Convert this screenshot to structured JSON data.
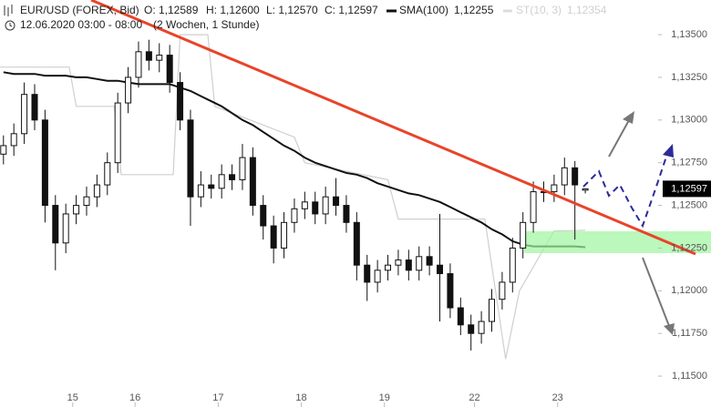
{
  "chart_data": {
    "type": "candlestick",
    "title": "EUR/USD (FOREX, Bid)",
    "ohlc_labels": [
      "O: 1,12589",
      "H: 1,12600",
      "L: 1,12570",
      "C: 1,12597"
    ],
    "subtitle": "12.06.2020 03:00 - 08:00",
    "period": "(2 Wochen, 1 Stunde)",
    "x": [
      1,
      4,
      7,
      10,
      13,
      16,
      19,
      22,
      25,
      28,
      31,
      34,
      37,
      40,
      43,
      46,
      49,
      52,
      55,
      58,
      61,
      64,
      67,
      70,
      73,
      76,
      79,
      82,
      85,
      88,
      91,
      94,
      97,
      100,
      103,
      106,
      109,
      112,
      115,
      118,
      121,
      124,
      127,
      130,
      133,
      136,
      139,
      142,
      145,
      148,
      151,
      154,
      157,
      160,
      163,
      166,
      169
    ],
    "open": [
      1.128,
      1.1285,
      1.1292,
      1.1315,
      1.13,
      1.125,
      1.1228,
      1.1245,
      1.125,
      1.1255,
      1.1262,
      1.1275,
      1.131,
      1.1325,
      1.134,
      1.1335,
      1.1338,
      1.1322,
      1.13,
      1.1255,
      1.1262,
      1.126,
      1.1268,
      1.1265,
      1.1278,
      1.125,
      1.1238,
      1.1225,
      1.124,
      1.1248,
      1.1252,
      1.1245,
      1.1255,
      1.125,
      1.124,
      1.1215,
      1.1205,
      1.1212,
      1.1215,
      1.1218,
      1.1212,
      1.122,
      1.1215,
      1.121,
      1.119,
      1.118,
      1.1175,
      1.1182,
      1.1195,
      1.1205,
      1.1225,
      1.124,
      1.1258,
      1.1258,
      1.1262,
      1.1272,
      1.12589
    ],
    "high": [
      1.1291,
      1.1298,
      1.1322,
      1.1321,
      1.1306,
      1.1256,
      1.1251,
      1.1256,
      1.1261,
      1.1268,
      1.1281,
      1.1316,
      1.1331,
      1.1346,
      1.1347,
      1.1345,
      1.1344,
      1.1328,
      1.1306,
      1.127,
      1.1268,
      1.1274,
      1.1274,
      1.1286,
      1.1284,
      1.1256,
      1.1244,
      1.1246,
      1.1254,
      1.1258,
      1.1258,
      1.1261,
      1.1266,
      1.1256,
      1.1246,
      1.1221,
      1.1218,
      1.1221,
      1.1224,
      1.1224,
      1.1226,
      1.1226,
      1.1245,
      1.1216,
      1.1196,
      1.1186,
      1.1188,
      1.1201,
      1.1211,
      1.1231,
      1.1246,
      1.1264,
      1.1264,
      1.1268,
      1.1278,
      1.1276,
      1.126
    ],
    "low": [
      1.1274,
      1.1279,
      1.1286,
      1.1294,
      1.124,
      1.1212,
      1.1222,
      1.1239,
      1.1244,
      1.1249,
      1.1256,
      1.1269,
      1.1304,
      1.1319,
      1.1329,
      1.1328,
      1.1316,
      1.1294,
      1.1238,
      1.1249,
      1.1254,
      1.1254,
      1.1259,
      1.1259,
      1.1244,
      1.123,
      1.1216,
      1.1219,
      1.1234,
      1.1242,
      1.1239,
      1.1239,
      1.1244,
      1.1234,
      1.1206,
      1.1194,
      1.1199,
      1.1206,
      1.1209,
      1.1206,
      1.1206,
      1.1209,
      1.1182,
      1.1184,
      1.1174,
      1.1165,
      1.1169,
      1.1176,
      1.1189,
      1.1199,
      1.1219,
      1.1234,
      1.1252,
      1.1252,
      1.1256,
      1.123,
      1.1257
    ],
    "close": [
      1.1285,
      1.1292,
      1.1315,
      1.13,
      1.125,
      1.1228,
      1.1245,
      1.125,
      1.1255,
      1.1262,
      1.1275,
      1.131,
      1.1325,
      1.134,
      1.1335,
      1.1338,
      1.1322,
      1.13,
      1.1255,
      1.1262,
      1.126,
      1.1268,
      1.1265,
      1.1278,
      1.125,
      1.1238,
      1.1225,
      1.124,
      1.1248,
      1.1252,
      1.1245,
      1.1255,
      1.125,
      1.124,
      1.1215,
      1.1205,
      1.1212,
      1.1215,
      1.1218,
      1.1212,
      1.122,
      1.1215,
      1.121,
      1.119,
      1.118,
      1.1175,
      1.1182,
      1.1195,
      1.1205,
      1.1225,
      1.124,
      1.1258,
      1.1258,
      1.1262,
      1.1272,
      1.1262,
      1.12597
    ],
    "overlays": [
      {
        "name": "ST(10, 3)",
        "color": "#cfcfcf",
        "value_label": "1,12354",
        "x": [
          0,
          20,
          22,
          33,
          35,
          50,
          52,
          60,
          62,
          85,
          88,
          112,
          115,
          140,
          146,
          150,
          160,
          169
        ],
        "values": [
          1.1331,
          1.1331,
          1.1308,
          1.1308,
          1.1268,
          1.1268,
          1.135,
          1.135,
          1.1308,
          1.129,
          1.1275,
          1.1265,
          1.1242,
          1.1242,
          1.116,
          1.12,
          1.1235,
          1.12354
        ]
      },
      {
        "name": "SMA(100)",
        "color": "#111111",
        "value_label": "1,12255",
        "x": [
          1,
          4,
          7,
          10,
          13,
          16,
          19,
          22,
          25,
          28,
          31,
          34,
          37,
          40,
          43,
          46,
          49,
          52,
          55,
          58,
          61,
          64,
          67,
          70,
          73,
          76,
          79,
          82,
          85,
          88,
          91,
          94,
          97,
          100,
          103,
          106,
          109,
          112,
          115,
          118,
          121,
          124,
          127,
          130,
          133,
          136,
          139,
          142,
          145,
          148,
          151,
          154,
          157,
          160,
          163,
          166,
          169
        ],
        "values": [
          1.1328,
          1.1327,
          1.1327,
          1.1327,
          1.1326,
          1.1326,
          1.1326,
          1.1325,
          1.1325,
          1.1324,
          1.1323,
          1.1323,
          1.1322,
          1.1321,
          1.1321,
          1.1321,
          1.1321,
          1.1319,
          1.1317,
          1.1314,
          1.1311,
          1.1308,
          1.1304,
          1.13,
          1.1297,
          1.1293,
          1.1289,
          1.1285,
          1.1282,
          1.1278,
          1.1275,
          1.1273,
          1.1271,
          1.1269,
          1.1268,
          1.1266,
          1.1263,
          1.1261,
          1.1259,
          1.1257,
          1.1256,
          1.1254,
          1.1252,
          1.1249,
          1.1246,
          1.1243,
          1.124,
          1.1236,
          1.1233,
          1.1229,
          1.1227,
          1.1226,
          1.1226,
          1.1226,
          1.1226,
          1.1226,
          1.12255
        ]
      }
    ],
    "last_price": {
      "value": 1.12597,
      "label": "1,12597"
    },
    "xlim": [
      0,
      205.3
    ],
    "ylim": [
      1.11319,
      1.13703
    ],
    "xticks": [
      {
        "value": 21,
        "label": "15"
      },
      {
        "value": 39,
        "label": "16"
      },
      {
        "value": 63,
        "label": "17"
      },
      {
        "value": 87,
        "label": "18"
      },
      {
        "value": 111,
        "label": "19"
      },
      {
        "value": 137,
        "label": "22"
      },
      {
        "value": 161,
        "label": "23"
      }
    ],
    "yticks": [
      {
        "value": 1.135,
        "label": "1,13500"
      },
      {
        "value": 1.1325,
        "label": "1,13250"
      },
      {
        "value": 1.13,
        "label": "1,13000"
      },
      {
        "value": 1.1275,
        "label": "1,12750"
      },
      {
        "value": 1.125,
        "label": "1,12500"
      },
      {
        "value": 1.1225,
        "label": "1,12250"
      },
      {
        "value": 1.12,
        "label": "1,12000"
      },
      {
        "value": 1.1175,
        "label": "1,11750"
      },
      {
        "value": 1.115,
        "label": "1,11500"
      }
    ],
    "up_color": "#ffffff",
    "down_color": "#111111"
  }
}
